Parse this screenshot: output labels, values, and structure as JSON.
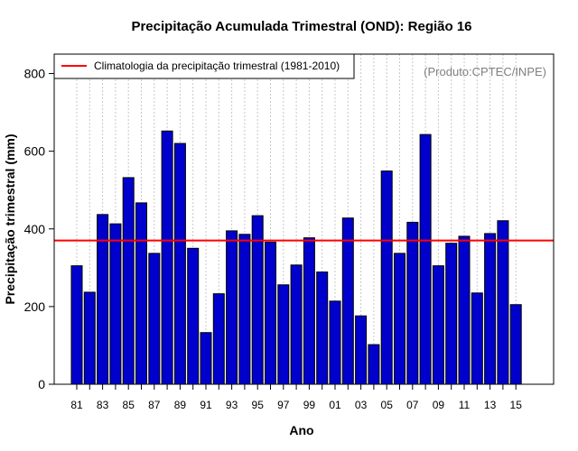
{
  "chart_data": {
    "type": "bar",
    "title": "Precipitação Acumulada Trimestral (OND): Região 16",
    "xlabel": "Ano",
    "ylabel": "Precipitação trimestral (mm)",
    "ylim": [
      0,
      850
    ],
    "yticks": [
      0,
      200,
      400,
      600,
      800
    ],
    "categories": [
      "81",
      "82",
      "83",
      "84",
      "85",
      "86",
      "87",
      "88",
      "89",
      "90",
      "91",
      "92",
      "93",
      "94",
      "95",
      "96",
      "97",
      "98",
      "99",
      "00",
      "01",
      "02",
      "03",
      "04",
      "05",
      "06",
      "07",
      "08",
      "09",
      "10",
      "11",
      "12",
      "13",
      "14",
      "15"
    ],
    "xtick_labels": [
      "81",
      "83",
      "85",
      "87",
      "89",
      "91",
      "93",
      "95",
      "97",
      "99",
      "01",
      "03",
      "05",
      "07",
      "09",
      "11",
      "13",
      "15"
    ],
    "values": [
      305,
      237,
      437,
      413,
      532,
      467,
      337,
      652,
      620,
      350,
      133,
      233,
      395,
      386,
      434,
      366,
      256,
      307,
      377,
      289,
      214,
      428,
      176,
      102,
      549,
      337,
      417,
      643,
      305,
      363,
      381,
      235,
      388,
      421,
      205
    ],
    "bar_color": "#0000cd",
    "climatology": {
      "value": 370,
      "label": "Climatologia da precipitação trimestral (1981-2010)",
      "color": "#ff0000"
    },
    "credit": "(Produto:CPTEC/INPE)",
    "grid": "vertical-dotted"
  }
}
